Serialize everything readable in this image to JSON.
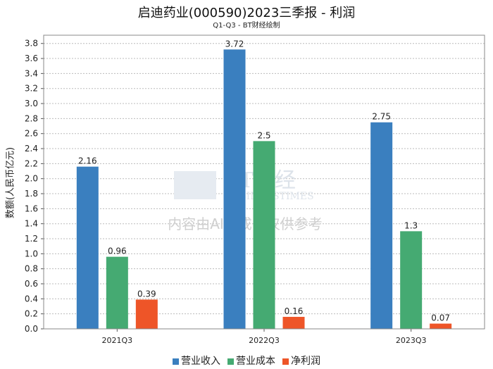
{
  "chart_data": {
    "type": "bar",
    "title": "启迪药业(000590)2023三季报 - 利润",
    "subtitle": "Q1-Q3 - BT财经绘制",
    "ylabel": "数额(人民币亿元)",
    "xlabel": "",
    "ylim": [
      0,
      3.91
    ],
    "yticks": [
      "0.0",
      "0.2",
      "0.4",
      "0.6",
      "0.8",
      "1.0",
      "1.2",
      "1.4",
      "1.6",
      "1.8",
      "2.0",
      "2.2",
      "2.4",
      "2.6",
      "2.8",
      "3.0",
      "3.2",
      "3.4",
      "3.6",
      "3.8"
    ],
    "categories": [
      "2021Q3",
      "2022Q3",
      "2023Q3"
    ],
    "series": [
      {
        "name": "营业收入",
        "color": "#3a7fbf",
        "values": [
          2.16,
          3.72,
          2.75
        ],
        "labels": [
          "2.16",
          "3.72",
          "2.75"
        ]
      },
      {
        "name": "营业成本",
        "color": "#45aa72",
        "values": [
          0.96,
          2.5,
          1.3
        ],
        "labels": [
          "0.96",
          "2.5",
          "1.3"
        ]
      },
      {
        "name": "净利润",
        "color": "#ee5528",
        "values": [
          0.39,
          0.16,
          0.07
        ],
        "labels": [
          "0.39",
          "0.16",
          "0.07"
        ]
      }
    ],
    "grid": true,
    "legend_position": "bottom",
    "watermark": {
      "brand": "BT财经",
      "brand_en": "BUSINESSTIMES",
      "notice": "内容由AI生成，仅供参考"
    }
  }
}
